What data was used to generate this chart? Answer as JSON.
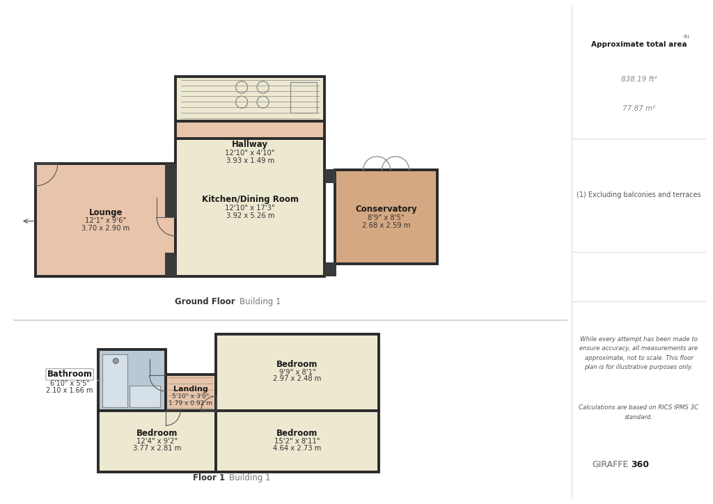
{
  "bg_color": "#ffffff",
  "wall_color": "#2a2a2a",
  "floor_pink": "#e8c4aa",
  "floor_cream": "#ede8d0",
  "floor_blue": "#b8c8d4",
  "floor_cons": "#d4a882",
  "sidebar_div": "#dddddd",
  "approx_area_title": "Approximate total area",
  "approx_sup": "ⁿ",
  "approx_ft2": "838.19 ft²",
  "approx_m2": "77.87 m²",
  "footnote1": "(1) Excluding balconies and terraces",
  "disclaimer_line1": "While every attempt has been made to",
  "disclaimer_line2": "ensure accuracy, all measurements are",
  "disclaimer_line3": "approximate, not to scale. This floor",
  "disclaimer_line4": "plan is for illustrative purposes only.",
  "calc_line1": "Calculations are based on RICS IPMS 3C",
  "calc_line2": "standard.",
  "brand": "GIRAFFE",
  "brand2": "360",
  "gf_label": "Ground Floor",
  "gf_building": "Building 1",
  "f1_label": "Floor 1",
  "f1_building": "Building 1"
}
